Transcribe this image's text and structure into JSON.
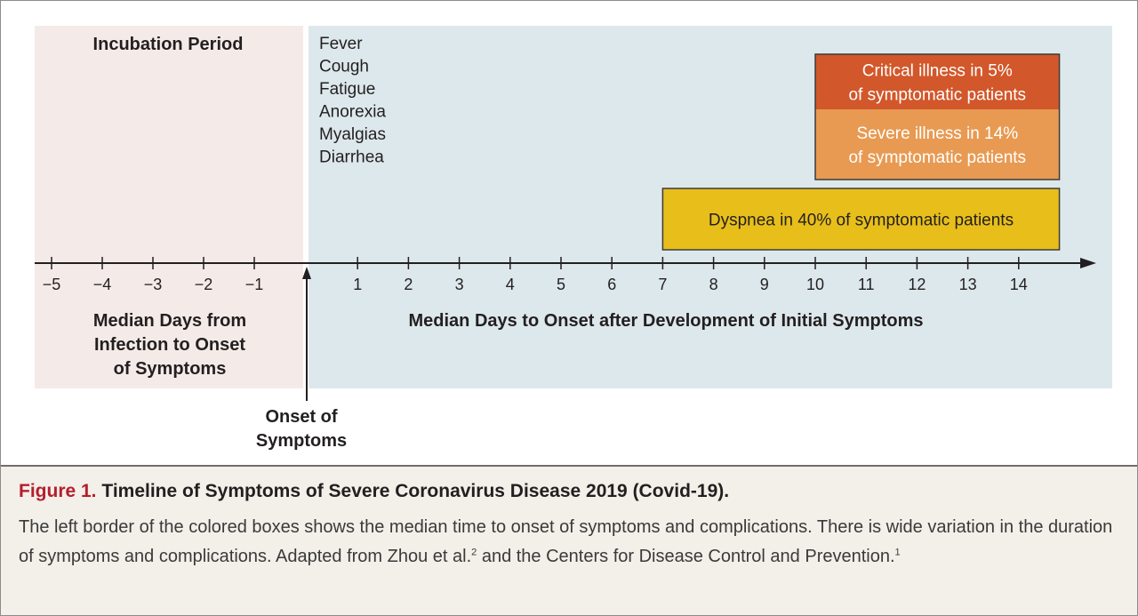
{
  "figure": {
    "incubation_label": "Incubation Period",
    "initial_symptoms": [
      "Fever",
      "Cough",
      "Fatigue",
      "Anorexia",
      "Myalgias",
      "Diarrhea"
    ],
    "boxes": [
      {
        "name": "critical",
        "lines": [
          "Critical illness in 5%",
          "of symptomatic patients"
        ],
        "start_day": 10,
        "end_day": 14.8,
        "color": "#d2572a"
      },
      {
        "name": "severe",
        "lines": [
          "Severe illness in 14%",
          "of symptomatic patients"
        ],
        "start_day": 10,
        "end_day": 14.8,
        "color": "#e89a52"
      },
      {
        "name": "dyspnea",
        "lines": [
          "Dyspnea in 40% of symptomatic patients"
        ],
        "start_day": 7,
        "end_day": 14.8,
        "color": "#e8bf1a"
      }
    ],
    "axis": {
      "ticks_before": [
        "−5",
        "−4",
        "−3",
        "−2",
        "−1"
      ],
      "ticks_after": [
        "1",
        "2",
        "3",
        "4",
        "5",
        "6",
        "7",
        "8",
        "9",
        "10",
        "11",
        "12",
        "13",
        "14"
      ]
    },
    "left_axis_label": [
      "Median Days from",
      "Infection to Onset",
      "of Symptoms"
    ],
    "right_axis_label": "Median Days to Onset after Development of Initial Symptoms",
    "onset_label": [
      "Onset of",
      "Symptoms"
    ],
    "colors": {
      "incubation_bg": "#f4ebe8",
      "symptoms_bg": "#dde8ec",
      "box_border": "#3a3a3a",
      "axis": "#231f20",
      "caption_bg": "#f3efe9",
      "figure_number": "#b41e2d"
    }
  },
  "caption": {
    "figure_number": "Figure 1.",
    "title": "Timeline of Symptoms of Severe Coronavirus Disease 2019 (Covid-19).",
    "text_part1": "The left border of the colored boxes shows the median time to onset of symptoms and complications. There is wide variation in the duration of symptoms and complications. Adapted from Zhou et al.",
    "ref1": "2",
    "text_part2": " and the Centers for Disease Control and Prevention.",
    "ref2": "1"
  }
}
